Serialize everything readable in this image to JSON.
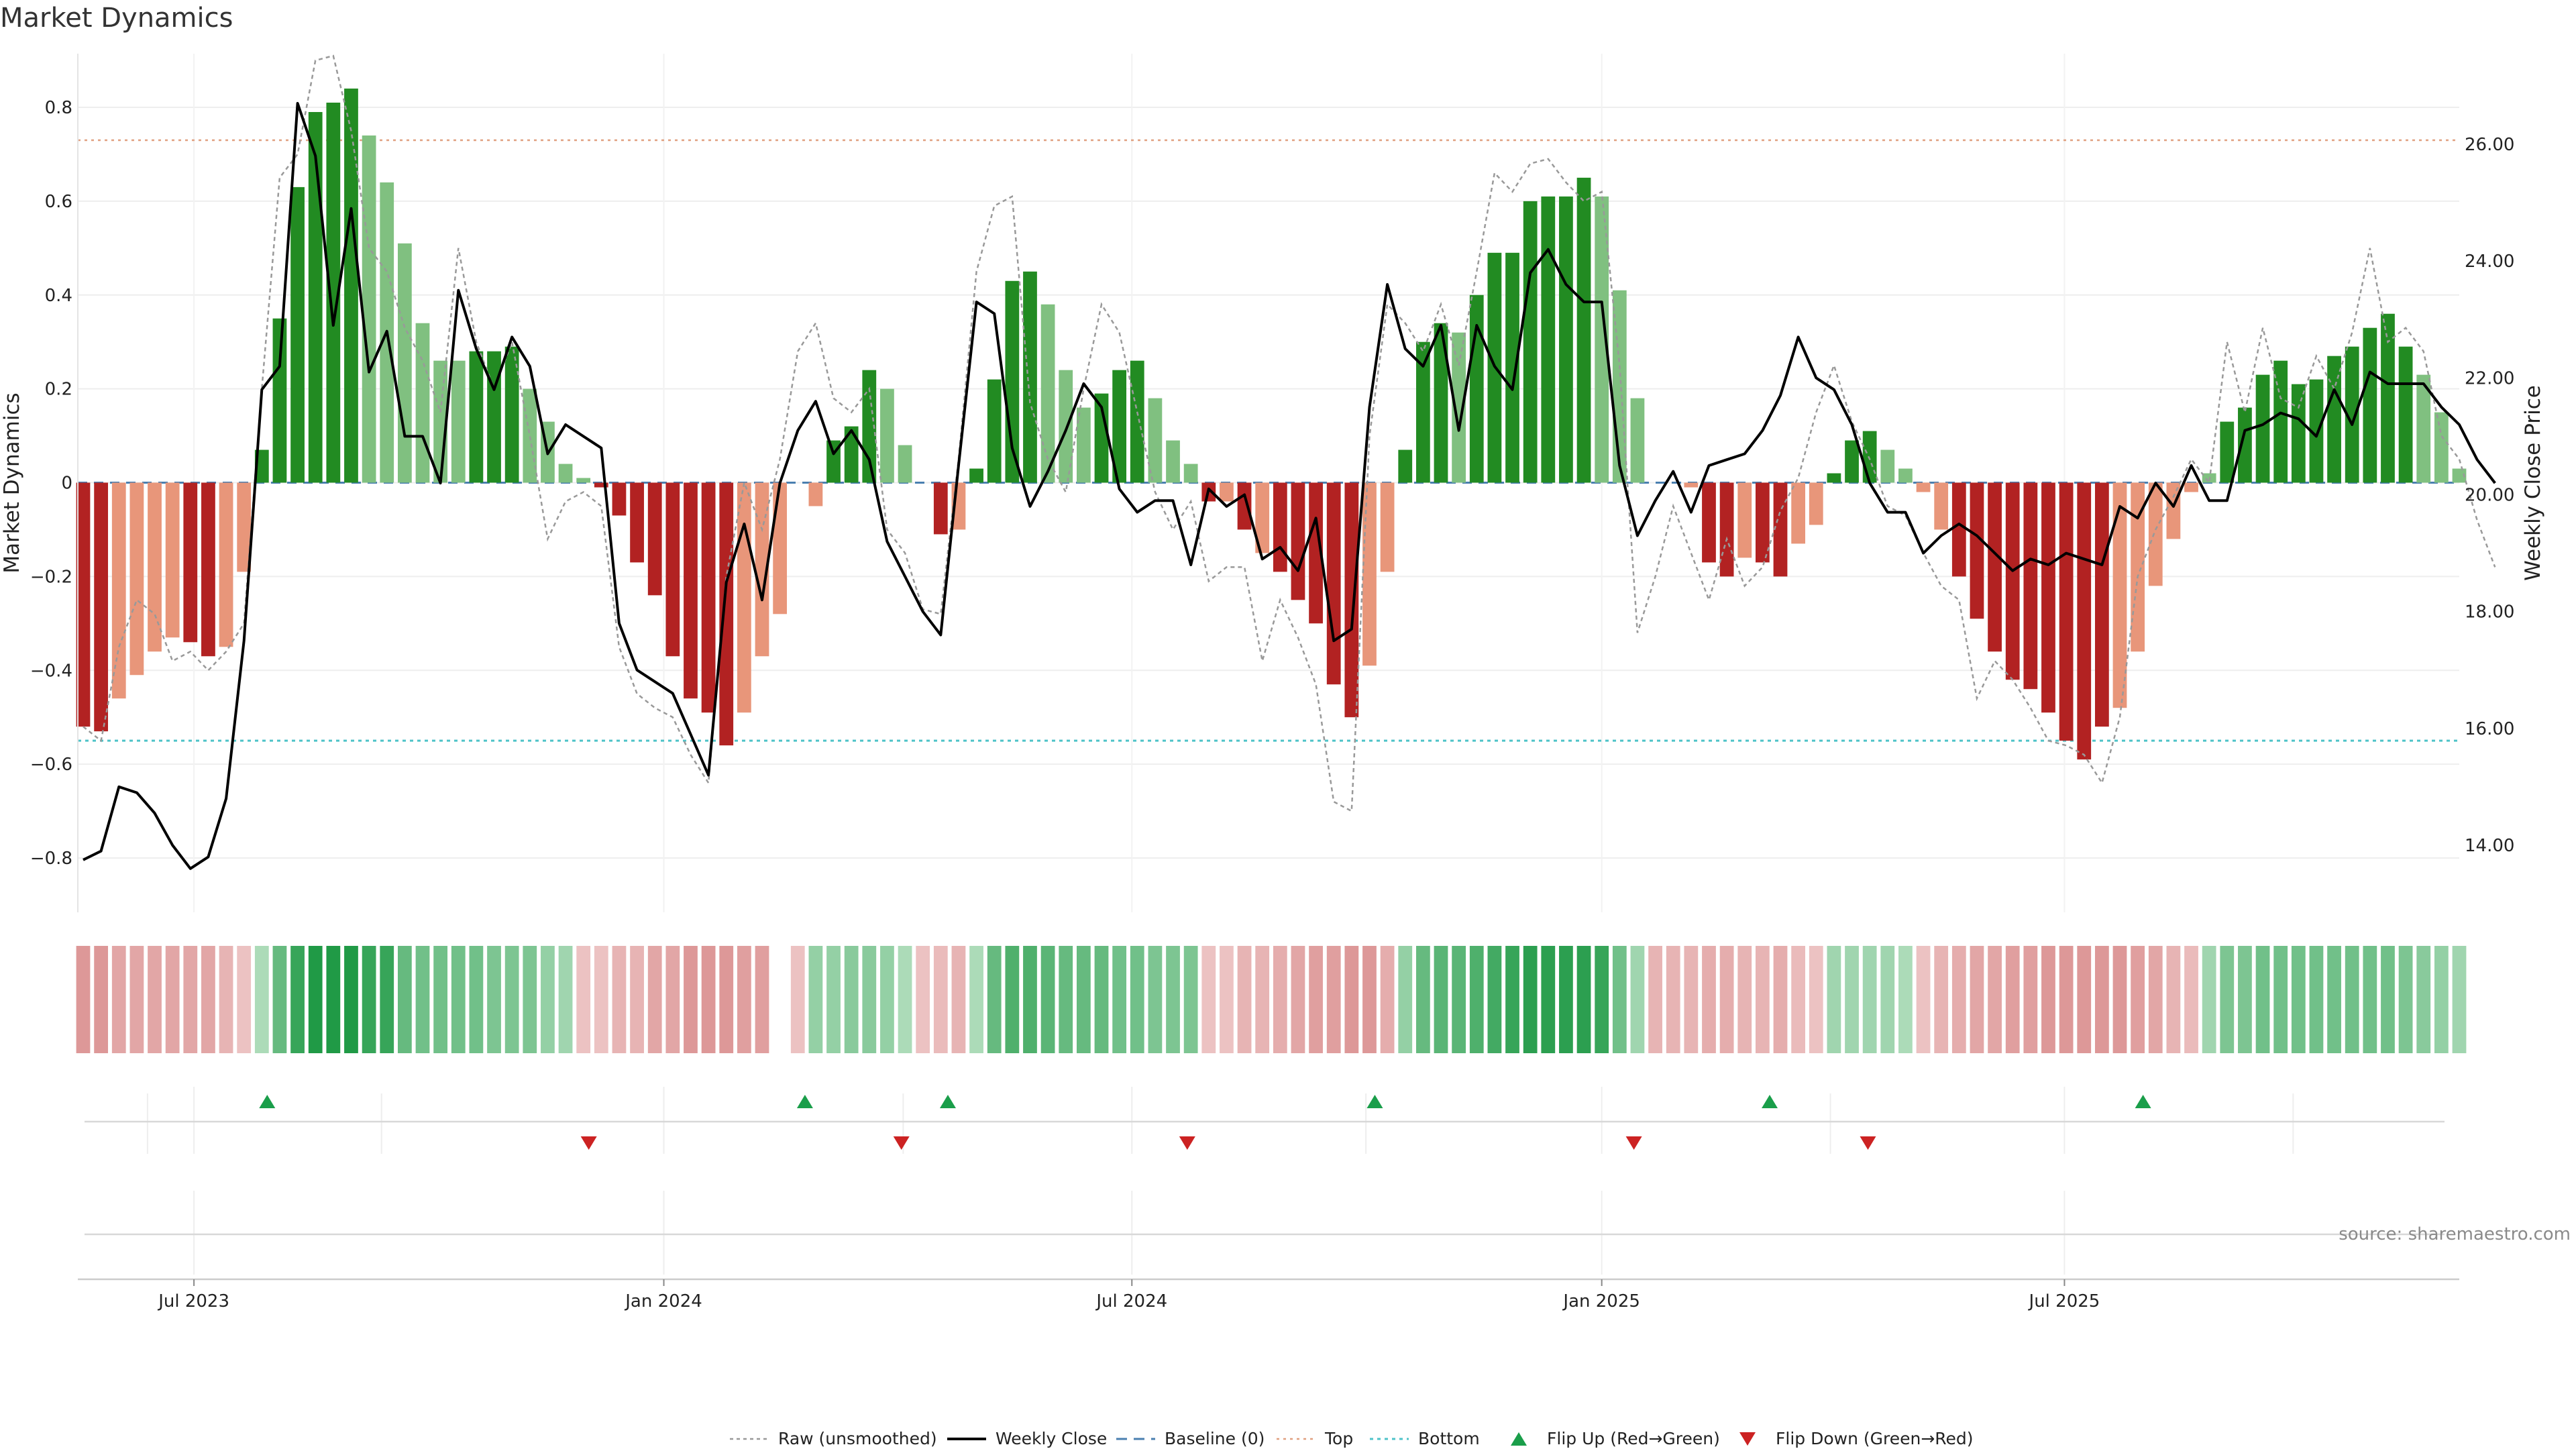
{
  "title": "Market Dynamics",
  "source": "source: sharemaestro.com",
  "colors": {
    "strong_green": "#228b22",
    "light_green": "#80c080",
    "strong_red": "#b22222",
    "light_red": "#e8967a",
    "price_line": "#000000",
    "raw_line": "#999999",
    "baseline": "#4a7fb0",
    "top": "#e0a080",
    "bottom": "#4fc3c8",
    "flip_up": "#1a9e4a",
    "flip_down": "#cc2222"
  },
  "chart_data": {
    "type": "bar",
    "ylabel_left": "Market Dynamics",
    "ylabel_right": "Weekly Close Price",
    "ylim_left": [
      -0.9,
      0.9
    ],
    "ylim_right": [
      13.3,
      27.5
    ],
    "yticks_left": [
      "−0.8",
      "−0.6",
      "−0.4",
      "−0.2",
      "0",
      "0.2",
      "0.4",
      "0.6",
      "0.8"
    ],
    "yticks_right": [
      "14.00",
      "16.00",
      "18.00",
      "20.00",
      "22.00",
      "24.00",
      "26.00"
    ],
    "x_ticks": [
      "Jul 2023",
      "Jan 2024",
      "Jul 2024",
      "Jan 2025",
      "Jul 2025"
    ],
    "x_tick_weeks": [
      6.2,
      32.5,
      58.7,
      85.0,
      110.9
    ],
    "top_line": 0.73,
    "bottom_line": -0.55,
    "baseline": 0,
    "grid": true,
    "bars": [
      -0.52,
      -0.53,
      -0.46,
      -0.41,
      -0.36,
      -0.33,
      -0.34,
      -0.37,
      -0.35,
      -0.19,
      0.07,
      0.35,
      0.63,
      0.79,
      0.81,
      0.84,
      0.74,
      0.64,
      0.51,
      0.34,
      0.26,
      0.26,
      0.28,
      0.28,
      0.29,
      0.2,
      0.13,
      0.04,
      0.01,
      -0.01,
      -0.07,
      -0.17,
      -0.24,
      -0.37,
      -0.46,
      -0.49,
      -0.56,
      -0.49,
      -0.37,
      -0.28,
      0,
      -0.05,
      0.09,
      0.12,
      0.24,
      0.2,
      0.08,
      0,
      -0.11,
      -0.1,
      0.03,
      0.22,
      0.43,
      0.45,
      0.38,
      0.24,
      0.16,
      0.19,
      0.24,
      0.26,
      0.18,
      0.09,
      0.04,
      -0.04,
      -0.04,
      -0.1,
      -0.15,
      -0.19,
      -0.25,
      -0.3,
      -0.43,
      -0.5,
      -0.39,
      -0.19,
      0.07,
      0.3,
      0.34,
      0.32,
      0.4,
      0.49,
      0.49,
      0.6,
      0.61,
      0.61,
      0.65,
      0.61,
      0.41,
      0.18,
      0,
      0,
      -0.01,
      -0.17,
      -0.2,
      -0.16,
      -0.17,
      -0.2,
      -0.13,
      -0.09,
      0.02,
      0.09,
      0.11,
      0.07,
      0.03,
      -0.02,
      -0.1,
      -0.2,
      -0.29,
      -0.36,
      -0.42,
      -0.44,
      -0.49,
      -0.55,
      -0.59,
      -0.52,
      -0.48,
      -0.36,
      -0.22,
      -0.12,
      -0.02,
      0.02,
      0.13,
      0.16,
      0.23,
      0.26,
      0.21,
      0.22,
      0.27,
      0.29,
      0.33,
      0.36,
      0.29,
      0.23,
      0.15,
      0.03
    ],
    "bar_shade": [
      1,
      1,
      0,
      0,
      0,
      0,
      1,
      1,
      0,
      0,
      1,
      1,
      1,
      1,
      1,
      1,
      0,
      0,
      0,
      0,
      0,
      0,
      1,
      1,
      1,
      0,
      0,
      0,
      0,
      1,
      1,
      1,
      1,
      1,
      1,
      1,
      1,
      0,
      0,
      0,
      0,
      0,
      1,
      1,
      1,
      0,
      0,
      0,
      1,
      0,
      1,
      1,
      1,
      1,
      0,
      0,
      0,
      1,
      1,
      1,
      0,
      0,
      0,
      1,
      0,
      1,
      0,
      1,
      1,
      1,
      1,
      1,
      0,
      0,
      1,
      1,
      1,
      0,
      1,
      1,
      1,
      1,
      1,
      1,
      1,
      0,
      0,
      0,
      0,
      0,
      0,
      1,
      1,
      0,
      1,
      1,
      0,
      0,
      1,
      1,
      1,
      0,
      0,
      0,
      0,
      1,
      1,
      1,
      1,
      1,
      1,
      1,
      1,
      1,
      0,
      0,
      0,
      0,
      0,
      0,
      1,
      1,
      1,
      1,
      1,
      1,
      1,
      1,
      1,
      1,
      1,
      0,
      0,
      0,
      0
    ],
    "weekly_close": [
      13.75,
      13.9,
      15.0,
      14.9,
      14.55,
      14.0,
      13.6,
      13.8,
      14.8,
      17.5,
      21.8,
      22.2,
      26.7,
      25.8,
      22.9,
      24.9,
      22.1,
      22.8,
      21.0,
      21.0,
      20.2,
      23.5,
      22.5,
      21.8,
      22.7,
      22.2,
      20.7,
      21.2,
      21.0,
      20.8,
      17.8,
      17.0,
      16.8,
      16.6,
      15.9,
      15.2,
      18.5,
      19.5,
      18.2,
      20.2,
      21.1,
      21.6,
      20.7,
      21.1,
      20.6,
      19.2,
      18.6,
      18.0,
      17.6,
      20.5,
      23.3,
      23.1,
      20.8,
      19.8,
      20.4,
      21.1,
      21.9,
      21.5,
      20.1,
      19.7,
      19.9,
      19.9,
      18.8,
      20.1,
      19.8,
      20.0,
      18.9,
      19.1,
      18.7,
      19.6,
      17.5,
      17.7,
      21.5,
      23.6,
      22.5,
      22.2,
      22.9,
      21.1,
      22.9,
      22.2,
      21.8,
      23.8,
      24.2,
      23.6,
      23.3,
      23.3,
      20.5,
      19.3,
      19.9,
      20.4,
      19.7,
      20.5,
      20.6,
      20.7,
      21.1,
      21.7,
      22.7,
      22.0,
      21.8,
      21.2,
      20.2,
      19.7,
      19.7,
      19.0,
      19.3,
      19.5,
      19.3,
      19.0,
      18.7,
      18.9,
      18.8,
      19.0,
      18.9,
      18.8,
      19.8,
      19.6,
      20.2,
      19.8,
      20.5,
      19.9,
      19.9,
      21.1,
      21.2,
      21.4,
      21.3,
      21.0,
      21.8,
      21.2,
      22.1,
      21.9,
      21.9,
      21.9,
      21.5,
      21.2,
      20.6,
      20.2
    ],
    "raw": [
      -0.52,
      -0.55,
      -0.35,
      -0.25,
      -0.28,
      -0.38,
      -0.36,
      -0.4,
      -0.36,
      -0.3,
      0.2,
      0.65,
      0.7,
      0.9,
      0.91,
      0.75,
      0.5,
      0.45,
      0.33,
      0.26,
      0.15,
      0.5,
      0.3,
      0.2,
      0.3,
      0.1,
      -0.12,
      -0.04,
      -0.02,
      -0.05,
      -0.35,
      -0.45,
      -0.48,
      -0.5,
      -0.58,
      -0.64,
      -0.2,
      0.0,
      -0.1,
      0.05,
      0.28,
      0.34,
      0.18,
      0.15,
      0.2,
      -0.1,
      -0.15,
      -0.27,
      -0.28,
      0.05,
      0.45,
      0.59,
      0.61,
      0.17,
      0.05,
      -0.02,
      0.2,
      0.38,
      0.32,
      0.15,
      -0.02,
      -0.1,
      -0.04,
      -0.21,
      -0.18,
      -0.18,
      -0.38,
      -0.25,
      -0.33,
      -0.43,
      -0.68,
      -0.7,
      0.1,
      0.38,
      0.34,
      0.28,
      0.38,
      0.25,
      0.45,
      0.66,
      0.62,
      0.68,
      0.69,
      0.64,
      0.6,
      0.62,
      0.25,
      -0.32,
      -0.2,
      -0.05,
      -0.15,
      -0.25,
      -0.12,
      -0.22,
      -0.18,
      -0.06,
      0.01,
      0.15,
      0.25,
      0.13,
      0.05,
      -0.05,
      -0.07,
      -0.15,
      -0.22,
      -0.25,
      -0.46,
      -0.38,
      -0.42,
      -0.48,
      -0.55,
      -0.56,
      -0.58,
      -0.64,
      -0.5,
      -0.2,
      -0.1,
      -0.03,
      0.05,
      0.0,
      0.3,
      0.15,
      0.33,
      0.18,
      0.16,
      0.27,
      0.2,
      0.32,
      0.5,
      0.3,
      0.33,
      0.28,
      0.1,
      0.05,
      -0.08,
      -0.18
    ],
    "heat_row": [
      -0.5,
      -0.5,
      -0.4,
      -0.4,
      -0.4,
      -0.4,
      -0.4,
      -0.4,
      -0.3,
      -0.2,
      0.2,
      0.5,
      0.7,
      0.8,
      0.8,
      0.8,
      0.7,
      0.7,
      0.5,
      0.45,
      0.45,
      0.45,
      0.45,
      0.4,
      0.4,
      0.4,
      0.3,
      0.25,
      -0.2,
      -0.2,
      -0.3,
      -0.3,
      -0.4,
      -0.4,
      -0.5,
      -0.5,
      -0.5,
      -0.45,
      -0.45,
      null,
      -0.2,
      0.3,
      0.3,
      0.35,
      0.35,
      0.3,
      0.2,
      -0.2,
      -0.25,
      -0.3,
      0.2,
      0.5,
      0.6,
      0.6,
      0.55,
      0.5,
      0.5,
      0.5,
      0.45,
      0.45,
      0.4,
      0.4,
      0.4,
      -0.2,
      -0.2,
      -0.3,
      -0.3,
      -0.35,
      -0.4,
      -0.45,
      -0.45,
      -0.5,
      -0.5,
      -0.35,
      0.3,
      0.5,
      0.55,
      0.55,
      0.6,
      0.65,
      0.7,
      0.75,
      0.75,
      0.75,
      0.75,
      0.7,
      0.45,
      0.25,
      -0.3,
      -0.3,
      -0.3,
      -0.35,
      -0.35,
      -0.3,
      -0.3,
      -0.35,
      -0.25,
      -0.2,
      0.25,
      0.25,
      0.25,
      0.25,
      0.2,
      -0.2,
      -0.3,
      -0.35,
      -0.4,
      -0.4,
      -0.45,
      -0.45,
      -0.5,
      -0.5,
      -0.5,
      -0.5,
      -0.5,
      -0.45,
      -0.4,
      -0.3,
      -0.25,
      0.25,
      0.4,
      0.4,
      0.45,
      0.45,
      0.45,
      0.45,
      0.45,
      0.45,
      0.45,
      0.45,
      0.4,
      0.35,
      0.3,
      0.25
    ],
    "flip_up_weeks": [
      10.3,
      40.4,
      48.4,
      72.3,
      94.4,
      115.3
    ],
    "flip_down_weeks": [
      28.3,
      45.8,
      61.8,
      86.8,
      99.9
    ],
    "legend": [
      {
        "label": "Raw (unsmoothed)",
        "type": "dotted-line"
      },
      {
        "label": "Weekly Close",
        "type": "line"
      },
      {
        "label": "Baseline (0)",
        "type": "dashed-line"
      },
      {
        "label": "Top",
        "type": "dotted-top"
      },
      {
        "label": "Bottom",
        "type": "dotted-bottom"
      },
      {
        "label": "Flip Up (Red→Green)",
        "type": "triangle-up"
      },
      {
        "label": "Flip Down (Green→Red)",
        "type": "triangle-down"
      }
    ]
  }
}
